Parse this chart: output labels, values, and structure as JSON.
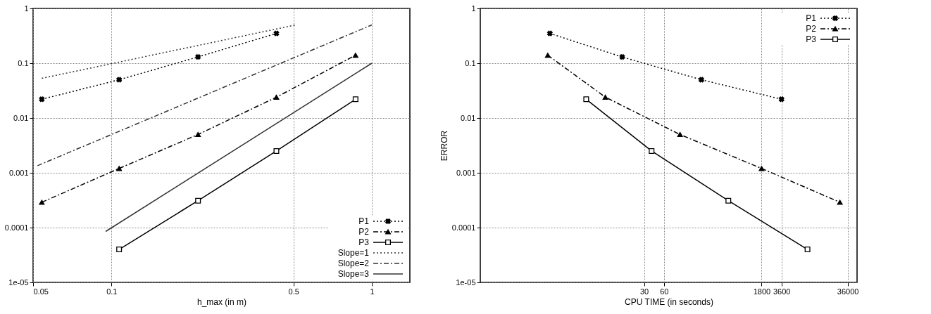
{
  "chart_data": [
    {
      "type": "line",
      "xlabel": "h_max (in m)",
      "log": "xy",
      "grid": true,
      "legend": "bottom right",
      "xlim": [
        0.05,
        1.4
      ],
      "xticks": [
        0.05,
        0.1,
        0.5,
        1
      ],
      "ylim": [
        1e-05,
        1
      ],
      "yticks": [
        {
          "value": 1e-05,
          "label": "1e-05"
        },
        0.0001,
        0.001,
        0.01,
        0.1,
        1
      ],
      "series": [
        {
          "name": "P1",
          "color": "#000000",
          "marker": "cross",
          "line_style": "dotted",
          "x": [
            0.054,
            0.107,
            0.215,
            0.43
          ],
          "values": [
            0.022,
            0.05,
            0.13,
            0.35
          ]
        },
        {
          "name": "P2",
          "color": "#000000",
          "marker": "triangle",
          "line_style": "dashed",
          "x": [
            0.054,
            0.107,
            0.215,
            0.43,
            0.866
          ],
          "values": [
            0.00029,
            0.0012,
            0.005,
            0.024,
            0.14
          ]
        },
        {
          "name": "P3",
          "color": "#000000",
          "marker": "square",
          "line_style": "solid",
          "x": [
            0.107,
            0.215,
            0.43,
            0.866
          ],
          "values": [
            4e-05,
            0.00031,
            0.0025,
            0.022
          ]
        },
        {
          "name": "Slope=1",
          "color": "#333333",
          "marker": "none",
          "line_style": "dotted",
          "x": [
            0.054,
            0.51
          ],
          "values": [
            0.053,
            0.5
          ]
        },
        {
          "name": "Slope=2",
          "color": "#333333",
          "marker": "none",
          "line_style": "dashed",
          "x": [
            0.052,
            1
          ],
          "values": [
            0.00135,
            0.5
          ]
        },
        {
          "name": "Slope=3",
          "color": "#333333",
          "marker": "none",
          "line_style": "solid",
          "x": [
            0.095,
            1
          ],
          "values": [
            8.5e-05,
            0.1
          ]
        }
      ]
    },
    {
      "type": "line",
      "xlabel": "CPU TIME (in seconds)",
      "ylabel": "ERROR",
      "log": "xy",
      "grid": true,
      "legend": "top right",
      "xlim": [
        0.1,
        50000
      ],
      "xticks": [
        30,
        60,
        1800,
        3600,
        36000
      ],
      "ylim": [
        1e-05,
        1
      ],
      "yticks": [
        {
          "value": 1e-05,
          "label": "1e-05"
        },
        0.0001,
        0.001,
        0.01,
        0.1,
        1
      ],
      "series": [
        {
          "name": "P1",
          "color": "#000000",
          "marker": "cross",
          "line_style": "dotted",
          "x": [
            1.13,
            14,
            221,
            3600
          ],
          "values": [
            0.35,
            0.13,
            0.05,
            0.022
          ]
        },
        {
          "name": "P2",
          "color": "#000000",
          "marker": "triangle",
          "line_style": "dashed",
          "x": [
            1.05,
            7.8,
            105,
            1800,
            27500
          ],
          "values": [
            0.14,
            0.024,
            0.005,
            0.0012,
            0.00029
          ]
        },
        {
          "name": "P3",
          "color": "#000000",
          "marker": "square",
          "line_style": "solid",
          "x": [
            4.0,
            39,
            565,
            8900
          ],
          "values": [
            0.022,
            0.0025,
            0.00031,
            4e-05
          ]
        }
      ]
    }
  ]
}
